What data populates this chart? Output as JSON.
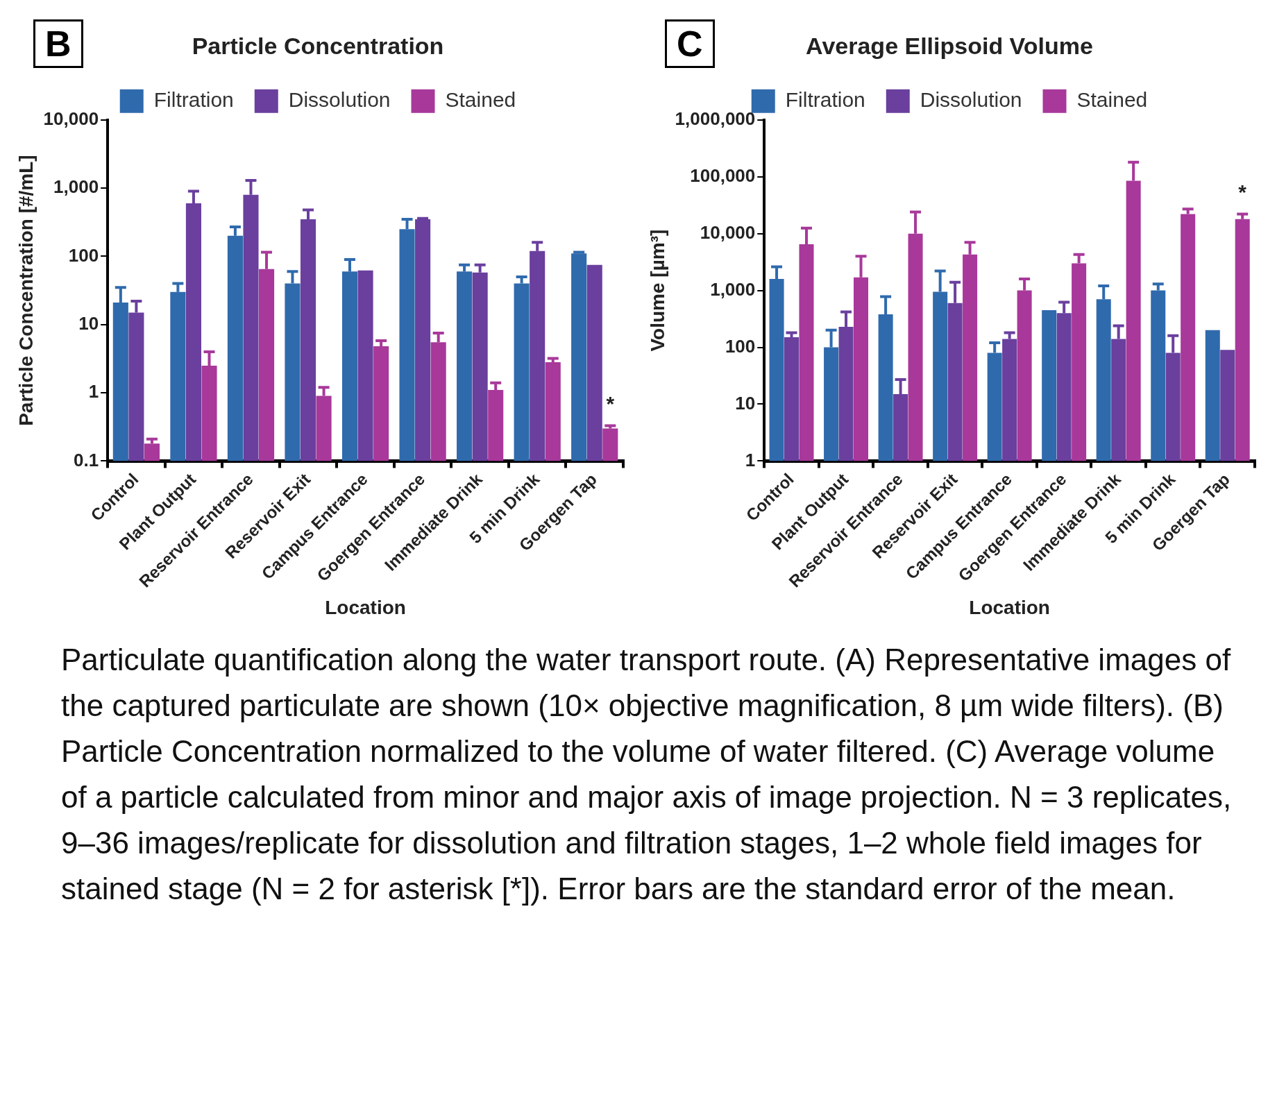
{
  "chart_data": [
    {
      "type": "bar",
      "title": "Particle Concentration",
      "xlabel": "Location",
      "ylabel": "Particle Concentration [#/mL]",
      "log": "y",
      "legend": "top",
      "annotations": [
        "B",
        "*"
      ],
      "categories": [
        "Control",
        "Plant Output",
        "Reservoir Entrance",
        "Reservoir Exit",
        "Campus Entrance",
        "Goergen Entrance",
        "Immediate Drink",
        "5 min Drink",
        "Goergen Tap"
      ],
      "ylim": [
        0.1,
        10000
      ],
      "yticks": [
        0.1,
        1,
        10,
        100,
        {
          "value": 1000,
          "label": "1,000"
        },
        {
          "value": 10000,
          "label": "10,000"
        }
      ],
      "series": [
        {
          "name": "Filtration",
          "color": "#2f6aad",
          "values": [
            21,
            30,
            200,
            40,
            60,
            250,
            60,
            40,
            110
          ],
          "errors": [
            [
              21,
              35
            ],
            [
              30,
              40
            ],
            [
              200,
              270
            ],
            [
              40,
              60
            ],
            [
              60,
              90
            ],
            [
              250,
              350
            ],
            [
              60,
              75
            ],
            [
              40,
              50
            ],
            [
              110,
              115
            ]
          ]
        },
        {
          "name": "Dissolution",
          "color": "#6a3f9e",
          "values": [
            15,
            600,
            800,
            350,
            62,
            350,
            58,
            120,
            75
          ],
          "errors": [
            [
              15,
              22
            ],
            [
              600,
              900
            ],
            [
              800,
              1300
            ],
            [
              350,
              480
            ],
            null,
            [
              350,
              360
            ],
            [
              58,
              75
            ],
            [
              120,
              160
            ],
            null
          ]
        },
        {
          "name": "Stained",
          "color": "#a8389a",
          "values": [
            0.18,
            2.5,
            65,
            0.9,
            4.8,
            5.5,
            1.1,
            2.8,
            0.3
          ],
          "errors": [
            [
              0.18,
              0.21
            ],
            [
              2.5,
              4
            ],
            [
              65,
              115
            ],
            [
              0.9,
              1.2
            ],
            [
              4.8,
              5.8
            ],
            [
              5.5,
              7.5
            ],
            [
              1.1,
              1.4
            ],
            [
              2.8,
              3.2
            ],
            [
              0.3,
              0.33
            ]
          ]
        }
      ]
    },
    {
      "type": "bar",
      "title": "Average Ellipsoid Volume",
      "xlabel": "Location",
      "ylabel": "Volume [µm³]",
      "log": "y",
      "legend": "top",
      "annotations": [
        "C",
        "*"
      ],
      "categories": [
        "Control",
        "Plant Output",
        "Reservoir Entrance",
        "Reservoir Exit",
        "Campus Entrance",
        "Goergen Entrance",
        "Immediate Drink",
        "5 min Drink",
        "Goergen Tap"
      ],
      "ylim": [
        1,
        1000000
      ],
      "yticks": [
        1,
        10,
        100,
        {
          "value": 1000,
          "label": "1,000"
        },
        {
          "value": 10000,
          "label": "10,000"
        },
        {
          "value": 100000,
          "label": "100,000"
        },
        {
          "value": 1000000,
          "label": "1,000,000"
        }
      ],
      "series": [
        {
          "name": "Filtration",
          "color": "#2f6aad",
          "values": [
            1600,
            100,
            380,
            950,
            80,
            450,
            700,
            1000,
            200
          ],
          "errors": [
            [
              1600,
              2600
            ],
            [
              100,
              200
            ],
            [
              380,
              780
            ],
            [
              950,
              2200
            ],
            [
              80,
              120
            ],
            null,
            [
              700,
              1200
            ],
            [
              1000,
              1300
            ],
            null
          ]
        },
        {
          "name": "Dissolution",
          "color": "#6a3f9e",
          "values": [
            150,
            230,
            15,
            600,
            140,
            400,
            140,
            80,
            90
          ],
          "errors": [
            [
              150,
              180
            ],
            [
              230,
              420
            ],
            [
              15,
              27
            ],
            [
              600,
              1400
            ],
            [
              140,
              180
            ],
            [
              400,
              620
            ],
            [
              140,
              240
            ],
            [
              80,
              160
            ],
            null
          ]
        },
        {
          "name": "Stained",
          "color": "#a8389a",
          "values": [
            6500,
            1700,
            10000,
            4300,
            1000,
            3000,
            85000,
            22000,
            18000
          ],
          "errors": [
            [
              6500,
              12500
            ],
            [
              1700,
              4000
            ],
            [
              10000,
              24000
            ],
            [
              4300,
              7000
            ],
            [
              1000,
              1600
            ],
            [
              3000,
              4300
            ],
            [
              85000,
              180000
            ],
            [
              22000,
              27000
            ],
            [
              18000,
              22000
            ]
          ]
        }
      ]
    },
    {
      "type": "other",
      "annotations": [
        "Particulate quantification along the water transport route. (A) Representative images of the captured particulate are shown (10× objective magnification, 8 µm wide filters). (B) Particle Concentration normalized to the volume of water filtered. (C) Average volume of a particle calculated from minor and major axis of image projection. N = 3 replicates, 9–36 images/replicate for dissolution and filtration stages, 1–2 whole field images for stained stage (N = 2 for asterisk [*]). Error bars are the standard error of the mean."
      ]
    }
  ]
}
